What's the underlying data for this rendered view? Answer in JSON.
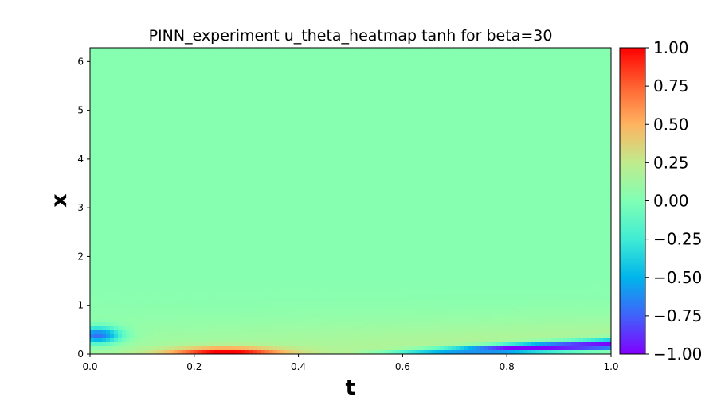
{
  "chart_data": {
    "type": "heatmap",
    "title": "PINN_experiment u_theta_heatmap tanh for beta=30",
    "xlabel": "t",
    "ylabel": "x",
    "xlim": [
      0.0,
      1.0
    ],
    "ylim": [
      0,
      6.2832
    ],
    "x_ticks": [
      "0.0",
      "0.2",
      "0.4",
      "0.6",
      "0.8",
      "1.0"
    ],
    "x_tick_values": [
      0.0,
      0.2,
      0.4,
      0.6,
      0.8,
      1.0
    ],
    "y_ticks": [
      "0",
      "1",
      "2",
      "3",
      "4",
      "5",
      "6"
    ],
    "y_tick_values": [
      0,
      1,
      2,
      3,
      4,
      5,
      6
    ],
    "colormap": "rainbow",
    "colorbar": {
      "vmin": -1.0,
      "vmax": 1.0,
      "ticks": [
        "−1.00",
        "−0.75",
        "−0.50",
        "−0.25",
        "0.00",
        "0.25",
        "0.50",
        "0.75",
        "1.00"
      ],
      "tick_values": [
        -1.0,
        -0.75,
        -0.5,
        -0.25,
        0.0,
        0.25,
        0.5,
        0.75,
        1.0
      ]
    },
    "features": [
      {
        "description": "negative blob",
        "t": 0.02,
        "x": 0.38,
        "value": -0.75
      },
      {
        "description": "positive band",
        "t": 0.26,
        "x": 0.05,
        "value": 1.0
      },
      {
        "description": "negative diagonal band",
        "t_range": [
          0.55,
          1.0
        ],
        "x_range": [
          0.05,
          0.45
        ],
        "value": -1.0
      },
      {
        "description": "faint positive layer",
        "x_range": [
          0.0,
          1.2
        ],
        "value": 0.25
      }
    ]
  }
}
